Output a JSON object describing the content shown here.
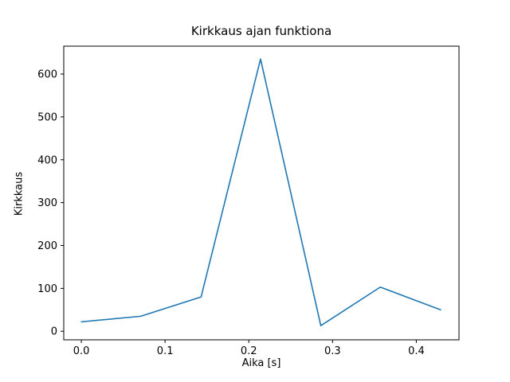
{
  "chart_data": {
    "type": "line",
    "title": "Kirkkaus ajan funktiona",
    "xlabel": "Aika [s]",
    "ylabel": "Kirkkaus",
    "x": [
      0.0,
      0.071,
      0.143,
      0.214,
      0.286,
      0.357,
      0.429
    ],
    "y": [
      22,
      35,
      80,
      635,
      13,
      103,
      50
    ],
    "xlim": [
      -0.021,
      0.451
    ],
    "ylim": [
      -20,
      665
    ],
    "xticks": [
      0.0,
      0.1,
      0.2,
      0.3,
      0.4
    ],
    "xtick_labels": [
      "0.0",
      "0.1",
      "0.2",
      "0.3",
      "0.4"
    ],
    "yticks": [
      0,
      100,
      200,
      300,
      400,
      500,
      600
    ],
    "ytick_labels": [
      "0",
      "100",
      "200",
      "300",
      "400",
      "500",
      "600"
    ],
    "line_color": "#1f77b4",
    "spine_color": "#000000",
    "grid": false,
    "legend": "none"
  }
}
